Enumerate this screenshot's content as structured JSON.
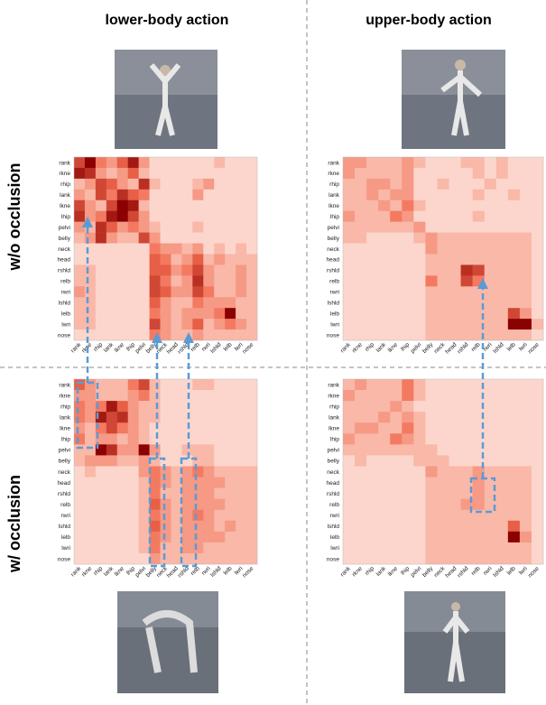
{
  "headers": [
    "lower-body action",
    "upper-body action"
  ],
  "row_labels": [
    "w/o occlusion",
    "w/ occlusion"
  ],
  "joints": [
    "rank",
    "rkne",
    "rhip",
    "lank",
    "lkne",
    "lhip",
    "pelvi",
    "belly",
    "neck",
    "head",
    "rshld",
    "relb",
    "rwri",
    "lshld",
    "lelb",
    "lwri",
    "nose"
  ],
  "value_range": [
    0,
    9
  ],
  "colors": [
    "#fff5f0",
    "#f26b4f",
    "#8b0000"
  ],
  "panels": [
    {
      "values": [
        [
          6,
          9,
          4,
          3,
          5,
          8,
          3,
          1,
          1,
          1,
          1,
          1,
          1,
          2,
          1,
          1,
          1
        ],
        [
          8,
          7,
          3,
          2,
          3,
          5,
          2,
          1,
          1,
          1,
          1,
          1,
          1,
          1,
          1,
          1,
          1
        ],
        [
          2,
          3,
          6,
          5,
          3,
          2,
          7,
          2,
          1,
          1,
          1,
          2,
          3,
          1,
          1,
          1,
          1
        ],
        [
          3,
          2,
          6,
          4,
          7,
          5,
          4,
          1,
          1,
          1,
          1,
          3,
          1,
          1,
          1,
          1,
          1
        ],
        [
          6,
          3,
          2,
          6,
          9,
          8,
          2,
          1,
          1,
          1,
          1,
          1,
          1,
          1,
          1,
          1,
          1
        ],
        [
          7,
          3,
          4,
          8,
          9,
          6,
          3,
          1,
          1,
          1,
          1,
          1,
          1,
          1,
          1,
          1,
          1
        ],
        [
          3,
          2,
          7,
          5,
          3,
          4,
          3,
          2,
          1,
          1,
          1,
          2,
          1,
          1,
          1,
          1,
          1
        ],
        [
          2,
          3,
          7,
          3,
          2,
          2,
          6,
          3,
          1,
          1,
          1,
          1,
          1,
          1,
          1,
          1,
          1
        ],
        [
          1,
          1,
          1,
          1,
          1,
          1,
          1,
          4,
          3,
          3,
          2,
          3,
          1,
          2,
          1,
          2,
          1
        ],
        [
          1,
          1,
          1,
          1,
          1,
          1,
          1,
          5,
          4,
          2,
          3,
          5,
          2,
          3,
          2,
          2,
          2
        ],
        [
          2,
          2,
          1,
          1,
          1,
          1,
          1,
          5,
          5,
          3,
          4,
          6,
          3,
          2,
          2,
          3,
          2
        ],
        [
          2,
          2,
          1,
          1,
          1,
          1,
          1,
          6,
          4,
          2,
          3,
          7,
          3,
          2,
          2,
          3,
          2
        ],
        [
          3,
          2,
          1,
          1,
          1,
          1,
          1,
          6,
          5,
          3,
          3,
          6,
          4,
          2,
          2,
          3,
          2
        ],
        [
          2,
          2,
          1,
          1,
          1,
          1,
          1,
          5,
          3,
          2,
          2,
          4,
          3,
          3,
          3,
          2,
          2
        ],
        [
          2,
          2,
          1,
          1,
          1,
          1,
          1,
          4,
          3,
          2,
          3,
          3,
          3,
          4,
          9,
          2,
          2
        ],
        [
          2,
          2,
          1,
          1,
          1,
          1,
          1,
          6,
          3,
          2,
          3,
          5,
          2,
          3,
          4,
          3,
          2
        ],
        [
          1,
          1,
          1,
          1,
          1,
          1,
          1,
          4,
          3,
          2,
          2,
          3,
          2,
          2,
          2,
          2,
          2
        ]
      ]
    },
    {
      "values": [
        [
          3,
          3,
          2,
          2,
          2,
          3,
          2,
          1,
          1,
          1,
          2,
          2,
          1,
          2,
          1,
          1,
          1
        ],
        [
          3,
          2,
          2,
          2,
          2,
          3,
          1,
          1,
          1,
          1,
          1,
          2,
          1,
          2,
          1,
          1,
          1
        ],
        [
          2,
          2,
          3,
          3,
          2,
          3,
          1,
          1,
          2,
          1,
          1,
          1,
          2,
          1,
          1,
          1,
          1
        ],
        [
          2,
          2,
          3,
          2,
          3,
          3,
          1,
          1,
          1,
          1,
          1,
          2,
          1,
          1,
          2,
          1,
          1
        ],
        [
          2,
          2,
          2,
          3,
          2,
          4,
          2,
          1,
          1,
          1,
          1,
          1,
          1,
          1,
          1,
          1,
          1
        ],
        [
          3,
          2,
          2,
          2,
          4,
          3,
          1,
          1,
          1,
          1,
          1,
          2,
          1,
          1,
          1,
          1,
          1
        ],
        [
          2,
          2,
          2,
          2,
          2,
          2,
          3,
          1,
          1,
          1,
          1,
          1,
          1,
          1,
          1,
          1,
          1
        ],
        [
          2,
          2,
          1,
          1,
          1,
          1,
          2,
          3,
          2,
          2,
          2,
          2,
          2,
          2,
          2,
          2,
          1
        ],
        [
          1,
          1,
          1,
          1,
          1,
          1,
          1,
          3,
          2,
          2,
          2,
          2,
          2,
          2,
          2,
          2,
          1
        ],
        [
          1,
          1,
          1,
          1,
          1,
          1,
          1,
          2,
          2,
          2,
          2,
          2,
          2,
          2,
          2,
          2,
          1
        ],
        [
          1,
          1,
          1,
          1,
          1,
          1,
          1,
          2,
          2,
          2,
          7,
          6,
          2,
          2,
          2,
          2,
          1
        ],
        [
          1,
          1,
          1,
          1,
          1,
          1,
          1,
          4,
          2,
          2,
          6,
          4,
          2,
          2,
          2,
          2,
          1
        ],
        [
          1,
          1,
          1,
          1,
          1,
          1,
          1,
          2,
          2,
          2,
          2,
          2,
          2,
          2,
          2,
          2,
          1
        ],
        [
          1,
          1,
          1,
          1,
          1,
          1,
          1,
          2,
          2,
          2,
          2,
          2,
          2,
          2,
          2,
          2,
          1
        ],
        [
          1,
          1,
          1,
          1,
          1,
          1,
          1,
          2,
          2,
          2,
          2,
          2,
          2,
          2,
          6,
          3,
          1
        ],
        [
          1,
          1,
          1,
          1,
          1,
          1,
          1,
          2,
          2,
          2,
          2,
          2,
          2,
          2,
          9,
          9,
          2
        ],
        [
          1,
          1,
          1,
          1,
          1,
          1,
          1,
          2,
          2,
          2,
          2,
          2,
          2,
          2,
          2,
          2,
          1
        ]
      ]
    },
    {
      "values": [
        [
          5,
          3,
          2,
          2,
          2,
          4,
          6,
          2,
          1,
          1,
          1,
          2,
          2,
          1,
          1,
          1,
          1
        ],
        [
          3,
          3,
          2,
          2,
          2,
          3,
          4,
          2,
          1,
          1,
          1,
          1,
          1,
          1,
          1,
          1,
          1
        ],
        [
          4,
          3,
          4,
          8,
          5,
          3,
          2,
          2,
          1,
          1,
          1,
          1,
          1,
          1,
          1,
          1,
          1
        ],
        [
          4,
          3,
          8,
          6,
          7,
          3,
          2,
          2,
          1,
          1,
          1,
          1,
          1,
          1,
          1,
          1,
          1
        ],
        [
          3,
          2,
          4,
          6,
          4,
          3,
          2,
          1,
          1,
          1,
          1,
          1,
          1,
          1,
          1,
          1,
          1
        ],
        [
          4,
          2,
          3,
          3,
          2,
          3,
          2,
          1,
          1,
          1,
          1,
          1,
          1,
          1,
          1,
          1,
          1
        ],
        [
          2,
          2,
          9,
          7,
          3,
          3,
          9,
          3,
          1,
          1,
          2,
          2,
          2,
          1,
          1,
          1,
          1
        ],
        [
          2,
          3,
          3,
          3,
          2,
          2,
          3,
          2,
          1,
          1,
          1,
          2,
          2,
          1,
          1,
          1,
          1
        ],
        [
          1,
          2,
          1,
          1,
          1,
          1,
          3,
          4,
          3,
          2,
          3,
          4,
          3,
          2,
          2,
          2,
          2
        ],
        [
          1,
          1,
          1,
          1,
          1,
          1,
          2,
          4,
          3,
          2,
          3,
          3,
          3,
          3,
          2,
          2,
          2
        ],
        [
          1,
          1,
          1,
          1,
          1,
          1,
          2,
          4,
          2,
          2,
          3,
          3,
          3,
          2,
          2,
          2,
          2
        ],
        [
          1,
          1,
          1,
          1,
          1,
          1,
          2,
          5,
          3,
          2,
          3,
          3,
          3,
          3,
          2,
          2,
          2
        ],
        [
          1,
          1,
          1,
          1,
          1,
          1,
          2,
          4,
          3,
          2,
          3,
          4,
          3,
          2,
          2,
          2,
          2
        ],
        [
          1,
          1,
          1,
          1,
          1,
          1,
          2,
          5,
          3,
          2,
          3,
          3,
          3,
          2,
          3,
          2,
          2
        ],
        [
          1,
          1,
          1,
          1,
          1,
          1,
          2,
          4,
          3,
          2,
          3,
          3,
          3,
          3,
          2,
          2,
          2
        ],
        [
          1,
          1,
          1,
          1,
          1,
          1,
          2,
          4,
          2,
          2,
          3,
          3,
          2,
          2,
          2,
          2,
          2
        ],
        [
          1,
          1,
          1,
          1,
          1,
          1,
          1,
          3,
          2,
          2,
          2,
          2,
          2,
          2,
          2,
          2,
          2
        ]
      ]
    },
    {
      "values": [
        [
          2,
          3,
          2,
          2,
          2,
          4,
          2,
          1,
          1,
          1,
          1,
          1,
          1,
          1,
          1,
          1,
          1
        ],
        [
          3,
          2,
          2,
          2,
          2,
          4,
          2,
          1,
          1,
          1,
          1,
          1,
          1,
          1,
          1,
          1,
          1
        ],
        [
          2,
          2,
          2,
          2,
          3,
          2,
          1,
          1,
          1,
          1,
          1,
          1,
          1,
          1,
          1,
          1,
          1
        ],
        [
          2,
          2,
          2,
          3,
          2,
          3,
          2,
          1,
          1,
          1,
          1,
          1,
          1,
          1,
          1,
          1,
          1
        ],
        [
          2,
          3,
          3,
          2,
          2,
          4,
          2,
          1,
          1,
          1,
          1,
          1,
          1,
          1,
          1,
          1,
          1
        ],
        [
          3,
          2,
          2,
          2,
          4,
          3,
          2,
          1,
          1,
          1,
          1,
          1,
          1,
          1,
          1,
          1,
          1
        ],
        [
          2,
          2,
          2,
          2,
          2,
          2,
          2,
          2,
          1,
          1,
          1,
          1,
          1,
          1,
          1,
          1,
          1
        ],
        [
          1,
          2,
          1,
          1,
          1,
          1,
          2,
          2,
          2,
          1,
          1,
          1,
          1,
          1,
          1,
          1,
          1
        ],
        [
          1,
          1,
          1,
          1,
          1,
          1,
          1,
          3,
          2,
          2,
          2,
          3,
          2,
          2,
          2,
          2,
          1
        ],
        [
          1,
          1,
          1,
          1,
          1,
          1,
          1,
          2,
          2,
          2,
          2,
          3,
          2,
          2,
          2,
          2,
          1
        ],
        [
          1,
          1,
          1,
          1,
          1,
          1,
          1,
          2,
          2,
          2,
          2,
          3,
          2,
          2,
          2,
          2,
          1
        ],
        [
          1,
          1,
          1,
          1,
          1,
          1,
          1,
          2,
          2,
          2,
          3,
          3,
          2,
          2,
          2,
          2,
          1
        ],
        [
          1,
          1,
          1,
          1,
          1,
          1,
          1,
          2,
          2,
          2,
          2,
          2,
          2,
          2,
          2,
          2,
          1
        ],
        [
          1,
          1,
          1,
          1,
          1,
          1,
          1,
          2,
          2,
          2,
          2,
          2,
          2,
          2,
          5,
          2,
          1
        ],
        [
          1,
          1,
          1,
          1,
          1,
          1,
          1,
          2,
          2,
          2,
          2,
          2,
          2,
          2,
          9,
          3,
          1
        ],
        [
          1,
          1,
          1,
          1,
          1,
          1,
          1,
          2,
          2,
          2,
          2,
          2,
          2,
          2,
          2,
          2,
          1
        ],
        [
          1,
          1,
          1,
          1,
          1,
          1,
          1,
          2,
          2,
          2,
          2,
          2,
          2,
          2,
          2,
          2,
          1
        ]
      ]
    }
  ]
}
